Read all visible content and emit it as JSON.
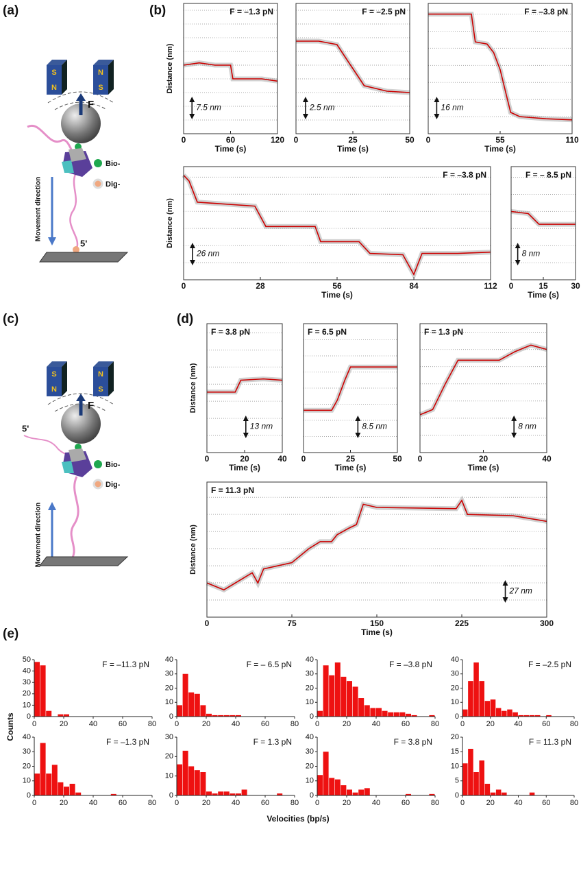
{
  "panel_labels": [
    "(a)",
    "(b)",
    "(c)",
    "(d)",
    "(e)"
  ],
  "diagrams": [
    {
      "magnet_poles": [
        "S",
        "N",
        "N",
        "S"
      ],
      "force": "F",
      "legend": [
        "Bio-",
        "Dig-"
      ],
      "movement": "Movement direction",
      "end": "5'"
    },
    {
      "magnet_poles": [
        "S",
        "N",
        "N",
        "S"
      ],
      "force": "F",
      "legend": [
        "Bio-",
        "Dig-"
      ],
      "movement": "Movement direction",
      "end": "5'"
    }
  ],
  "panel_e": {
    "ylabel": "Counts",
    "xlabel": "Velocities (bp/s)"
  },
  "chart_data": [
    {
      "type": "line",
      "title": "F = –1.3 pN",
      "xlabel": "Time (s)",
      "ylabel": "Distance (nm)",
      "xlim": [
        0,
        120
      ],
      "xticks": [
        0,
        60,
        120
      ],
      "ylim": [
        0,
        57
      ],
      "gridlines": [
        6,
        12,
        18,
        24,
        30,
        36,
        42,
        48,
        54
      ],
      "color": "#cc0000",
      "raw_color": "#9a9a9a",
      "x": [
        0,
        20,
        40,
        60,
        63,
        80,
        100,
        120
      ],
      "values": [
        30,
        31,
        30,
        30,
        24,
        24,
        24,
        23
      ],
      "scale_bar": {
        "value": 7.5,
        "label": "7.5 nm"
      }
    },
    {
      "type": "line",
      "title": "F = –2.5 pN",
      "xlabel": "Time (s)",
      "xlim": [
        0,
        50
      ],
      "xticks": [
        0,
        25,
        50
      ],
      "ylim": [
        0,
        19
      ],
      "gridlines": [
        2,
        4,
        6,
        8,
        10,
        12,
        14,
        16,
        18
      ],
      "color": "#cc0000",
      "raw_color": "#9a9a9a",
      "x": [
        0,
        10,
        18,
        22,
        26,
        30,
        40,
        50
      ],
      "values": [
        13.5,
        13.5,
        13,
        11,
        9,
        7,
        6.2,
        6
      ],
      "scale_bar": {
        "value": 2.5,
        "label": "2.5 nm"
      }
    },
    {
      "type": "line",
      "title": "F = –3.8 pN",
      "xlabel": "Time (s)",
      "xlim": [
        0,
        110
      ],
      "xticks": [
        0,
        55,
        110
      ],
      "ylim": [
        0,
        122
      ],
      "gridlines": [
        16,
        32,
        48,
        64,
        80,
        96,
        112
      ],
      "color": "#cc0000",
      "raw_color": "#9a9a9a",
      "x": [
        0,
        33,
        36,
        45,
        50,
        55,
        60,
        63,
        70,
        90,
        110
      ],
      "values": [
        112,
        112,
        86,
        84,
        76,
        60,
        35,
        20,
        16,
        14,
        13
      ],
      "scale_bar": {
        "value": 16,
        "label": "16 nm"
      }
    },
    {
      "type": "line",
      "title": "F = –3.8 pN",
      "xlabel": "Time (s)",
      "ylabel": "Distance (nm)",
      "xlim": [
        0,
        112
      ],
      "xticks": [
        0,
        28,
        56,
        84,
        112
      ],
      "ylim": [
        0,
        172
      ],
      "gridlines": [
        26,
        52,
        78,
        104,
        130,
        156
      ],
      "color": "#cc0000",
      "raw_color": "#9a9a9a",
      "x": [
        0,
        2,
        5,
        26,
        30,
        48,
        50,
        64,
        68,
        80,
        84,
        87,
        100,
        112
      ],
      "values": [
        159,
        150,
        118,
        112,
        81,
        81,
        58,
        58,
        40,
        38,
        8,
        40,
        40,
        42
      ],
      "scale_bar": {
        "value": 26,
        "label": "26 nm"
      }
    },
    {
      "type": "line",
      "title": "F = – 8.5 pN",
      "xlabel": "Time (s)",
      "xlim": [
        0,
        30
      ],
      "xticks": [
        0,
        15,
        30
      ],
      "ylim": [
        0,
        53
      ],
      "gridlines": [
        8,
        16,
        24,
        32,
        40,
        48
      ],
      "color": "#cc0000",
      "raw_color": "#9a9a9a",
      "x": [
        0,
        8,
        13,
        18,
        30
      ],
      "values": [
        32,
        31,
        26,
        26,
        26
      ],
      "scale_bar": {
        "value": 8,
        "label": "8 nm"
      }
    },
    {
      "type": "line",
      "title": "F = 3.8 pN",
      "xlabel": "Time (s)",
      "ylabel": "Distance (nm)",
      "xlim": [
        0,
        40
      ],
      "xticks": [
        0,
        20,
        40
      ],
      "ylim": [
        0,
        98
      ],
      "gridlines": [
        13,
        26,
        39,
        52,
        65,
        78,
        91
      ],
      "color": "#cc0000",
      "raw_color": "#9a9a9a",
      "x": [
        0,
        15,
        18,
        30,
        40
      ],
      "values": [
        46,
        46,
        55,
        56,
        55
      ],
      "scale_bar": {
        "value": 13,
        "label": "13 nm"
      }
    },
    {
      "type": "line",
      "title": "F = 6.5 pN",
      "xlabel": "Time (s)",
      "xlim": [
        0,
        50
      ],
      "xticks": [
        0,
        25,
        50
      ],
      "ylim": [
        0,
        64
      ],
      "gridlines": [
        8,
        16,
        24,
        32,
        40,
        48,
        56
      ],
      "color": "#cc0000",
      "raw_color": "#9a9a9a",
      "x": [
        0,
        15,
        18,
        22,
        25,
        50
      ],
      "values": [
        21,
        21,
        26,
        36,
        42.5,
        42.5
      ],
      "scale_bar": {
        "value": 8.5,
        "label": "8.5 nm"
      }
    },
    {
      "type": "line",
      "title": "F = 1.3 pN",
      "xlabel": "Time (s)",
      "xlim": [
        0,
        40
      ],
      "xticks": [
        0,
        20,
        40
      ],
      "ylim": [
        0,
        60
      ],
      "gridlines": [
        8,
        16,
        24,
        32,
        40,
        48,
        56
      ],
      "color": "#cc0000",
      "raw_color": "#9a9a9a",
      "x": [
        0,
        4,
        8,
        12,
        25,
        30,
        35,
        40
      ],
      "values": [
        17.6,
        20,
        32,
        43,
        43,
        47,
        50,
        48
      ],
      "scale_bar": {
        "value": 8,
        "label": "8 nm"
      }
    },
    {
      "type": "line",
      "title": "F = 11.3 pN",
      "xlabel": "Time (s)",
      "ylabel": "Distance (nm)",
      "xlim": [
        0,
        300
      ],
      "xticks": [
        0,
        75,
        150,
        225,
        300
      ],
      "ylim": [
        0,
        213
      ],
      "gridlines": [
        27,
        54,
        81,
        108,
        135,
        162,
        189
      ],
      "color": "#cc0000",
      "raw_color": "#9a9a9a",
      "x": [
        0,
        15,
        40,
        45,
        50,
        75,
        90,
        100,
        110,
        115,
        125,
        132,
        138,
        150,
        220,
        225,
        230,
        270,
        300
      ],
      "values": [
        54,
        43,
        70,
        54,
        76,
        86,
        108,
        119,
        119,
        130,
        140,
        146,
        178,
        173,
        171,
        184,
        162,
        160,
        151
      ],
      "scale_bar": {
        "value": 27,
        "label": "27 nm"
      }
    },
    {
      "type": "histogram",
      "title": "F = –11.3 pN",
      "xlim": [
        0,
        80
      ],
      "xticks": [
        0,
        20,
        40,
        60,
        80
      ],
      "ylim": [
        0,
        50
      ],
      "yticks": [
        0,
        10,
        20,
        30,
        40,
        50
      ],
      "color": "#ee1111",
      "bins": [
        0,
        4,
        8,
        12,
        16,
        20,
        24,
        28,
        32,
        36,
        40,
        44,
        48,
        52,
        56,
        60,
        64,
        68,
        72,
        76,
        80
      ],
      "values": [
        48,
        45,
        5,
        0,
        2,
        2,
        0,
        0,
        0,
        0,
        0,
        0,
        0,
        0,
        0,
        0,
        0,
        0,
        0,
        0
      ]
    },
    {
      "type": "histogram",
      "title": "F = – 6.5 pN",
      "xlim": [
        0,
        80
      ],
      "xticks": [
        0,
        20,
        40,
        60,
        80
      ],
      "ylim": [
        0,
        40
      ],
      "yticks": [
        0,
        10,
        20,
        30,
        40
      ],
      "color": "#ee1111",
      "bins": [
        0,
        4,
        8,
        12,
        16,
        20,
        24,
        28,
        32,
        36,
        40,
        44,
        48,
        52,
        56,
        60,
        64,
        68,
        72,
        76,
        80
      ],
      "values": [
        8,
        30,
        17,
        16,
        8,
        2,
        1,
        1,
        1,
        1,
        1,
        0,
        0,
        0,
        0,
        0,
        0,
        0,
        0,
        0
      ]
    },
    {
      "type": "histogram",
      "title": "F = –3.8 pN",
      "xlim": [
        0,
        80
      ],
      "xticks": [
        0,
        20,
        40,
        60,
        80
      ],
      "ylim": [
        0,
        40
      ],
      "yticks": [
        0,
        10,
        20,
        30,
        40
      ],
      "color": "#ee1111",
      "bins": [
        0,
        4,
        8,
        12,
        16,
        20,
        24,
        28,
        32,
        36,
        40,
        44,
        48,
        52,
        56,
        60,
        64,
        68,
        72,
        76,
        80
      ],
      "values": [
        4,
        36,
        29,
        38,
        28,
        25,
        21,
        13,
        8,
        6,
        6,
        4,
        3,
        3,
        3,
        2,
        1,
        0,
        0,
        1
      ]
    },
    {
      "type": "histogram",
      "title": "F = –2.5 pN",
      "xlim": [
        0,
        80
      ],
      "xticks": [
        0,
        20,
        40,
        60,
        80
      ],
      "ylim": [
        0,
        40
      ],
      "yticks": [
        0,
        10,
        20,
        30,
        40
      ],
      "color": "#ee1111",
      "bins": [
        0,
        4,
        8,
        12,
        16,
        20,
        24,
        28,
        32,
        36,
        40,
        44,
        48,
        52,
        56,
        60,
        64,
        68,
        72,
        76,
        80
      ],
      "values": [
        5,
        25,
        38,
        25,
        11,
        12,
        6,
        4,
        5,
        3,
        1,
        1,
        1,
        1,
        0,
        1,
        0,
        0,
        0,
        0
      ]
    },
    {
      "type": "histogram",
      "title": "F = –1.3 pN",
      "xlim": [
        0,
        80
      ],
      "xticks": [
        0,
        20,
        40,
        60,
        80
      ],
      "ylim": [
        0,
        40
      ],
      "yticks": [
        0,
        10,
        20,
        30,
        40
      ],
      "color": "#ee1111",
      "bins": [
        0,
        4,
        8,
        12,
        16,
        20,
        24,
        28,
        32,
        36,
        40,
        44,
        48,
        52,
        56,
        60,
        64,
        68,
        72,
        76,
        80
      ],
      "values": [
        15,
        36,
        15,
        21,
        9,
        6,
        8,
        2,
        0,
        0,
        0,
        0,
        0,
        1,
        0,
        0,
        0,
        0,
        0,
        0
      ]
    },
    {
      "type": "histogram",
      "title": "F = 1.3 pN",
      "xlim": [
        0,
        80
      ],
      "xticks": [
        0,
        20,
        40,
        60,
        80
      ],
      "ylim": [
        0,
        30
      ],
      "yticks": [
        0,
        10,
        20,
        30
      ],
      "color": "#ee1111",
      "bins": [
        0,
        4,
        8,
        12,
        16,
        20,
        24,
        28,
        32,
        36,
        40,
        44,
        48,
        52,
        56,
        60,
        64,
        68,
        72,
        76,
        80
      ],
      "values": [
        16,
        23,
        15,
        13,
        12,
        2,
        1,
        2,
        2,
        1,
        1,
        3,
        0,
        0,
        0,
        0,
        0,
        1,
        0,
        0
      ]
    },
    {
      "type": "histogram",
      "title": "F = 3.8 pN",
      "xlim": [
        0,
        80
      ],
      "xticks": [
        0,
        20,
        40,
        60,
        80
      ],
      "ylim": [
        0,
        40
      ],
      "yticks": [
        0,
        10,
        20,
        30,
        40
      ],
      "color": "#ee1111",
      "bins": [
        0,
        4,
        8,
        12,
        16,
        20,
        24,
        28,
        32,
        36,
        40,
        44,
        48,
        52,
        56,
        60,
        64,
        68,
        72,
        76,
        80
      ],
      "values": [
        14,
        30,
        12,
        11,
        7,
        4,
        2,
        4,
        5,
        0,
        0,
        0,
        0,
        0,
        0,
        1,
        0,
        0,
        0,
        1
      ]
    },
    {
      "type": "histogram",
      "title": "F = 11.3 pN",
      "xlim": [
        0,
        80
      ],
      "xticks": [
        0,
        20,
        40,
        60,
        80
      ],
      "ylim": [
        0,
        20
      ],
      "yticks": [
        0,
        5,
        10,
        15,
        20
      ],
      "color": "#ee1111",
      "bins": [
        0,
        4,
        8,
        12,
        16,
        20,
        24,
        28,
        32,
        36,
        40,
        44,
        48,
        52,
        56,
        60,
        64,
        68,
        72,
        76,
        80
      ],
      "values": [
        11,
        16,
        8,
        12,
        4,
        1,
        2,
        1,
        0,
        0,
        0,
        0,
        1,
        0,
        0,
        0,
        0,
        0,
        0,
        0
      ]
    }
  ]
}
